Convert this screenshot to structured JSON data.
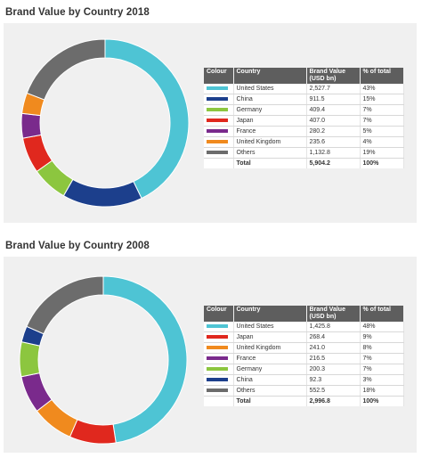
{
  "chart_data": [
    {
      "type": "pie",
      "title": "Brand Value by Country 2018",
      "table_headers": [
        "Colour",
        "Country",
        "Brand Value (USD bn)",
        "% of total"
      ],
      "series": [
        {
          "name": "United States",
          "value": "2,527.7",
          "percent": "43%",
          "color": "#4ec4d4"
        },
        {
          "name": "China",
          "value": "911.5",
          "percent": "15%",
          "color": "#1c3f8c"
        },
        {
          "name": "Germany",
          "value": "409.4",
          "percent": "7%",
          "color": "#8cc63f"
        },
        {
          "name": "Japan",
          "value": "407.0",
          "percent": "7%",
          "color": "#e0281e"
        },
        {
          "name": "France",
          "value": "280.2",
          "percent": "5%",
          "color": "#7a2a8c"
        },
        {
          "name": "United Kingdom",
          "value": "235.6",
          "percent": "4%",
          "color": "#f08a1e"
        },
        {
          "name": "Others",
          "value": "1,132.8",
          "percent": "19%",
          "color": "#6c6c6c"
        }
      ],
      "slice_order": [
        "United States",
        "China",
        "Germany",
        "Japan",
        "France",
        "United Kingdom",
        "Others"
      ],
      "total": {
        "label": "Total",
        "value": "5,904.2",
        "percent": "100%"
      }
    },
    {
      "type": "pie",
      "title": "Brand Value by Country 2008",
      "table_headers": [
        "Colour",
        "Country",
        "Brand Value (USD bn)",
        "% of total"
      ],
      "series": [
        {
          "name": "United States",
          "value": "1,425.8",
          "percent": "48%",
          "color": "#4ec4d4"
        },
        {
          "name": "Japan",
          "value": "268.4",
          "percent": "9%",
          "color": "#e0281e"
        },
        {
          "name": "United Kingdom",
          "value": "241.0",
          "percent": "8%",
          "color": "#f08a1e"
        },
        {
          "name": "France",
          "value": "216.5",
          "percent": "7%",
          "color": "#7a2a8c"
        },
        {
          "name": "Germany",
          "value": "200.3",
          "percent": "7%",
          "color": "#8cc63f"
        },
        {
          "name": "China",
          "value": "92.3",
          "percent": "3%",
          "color": "#1c3f8c"
        },
        {
          "name": "Others",
          "value": "552.5",
          "percent": "18%",
          "color": "#6c6c6c"
        }
      ],
      "slice_order": [
        "United States",
        "Japan",
        "United Kingdom",
        "France",
        "Germany",
        "China",
        "Others"
      ],
      "total": {
        "label": "Total",
        "value": "2,996.8",
        "percent": "100%"
      }
    }
  ]
}
